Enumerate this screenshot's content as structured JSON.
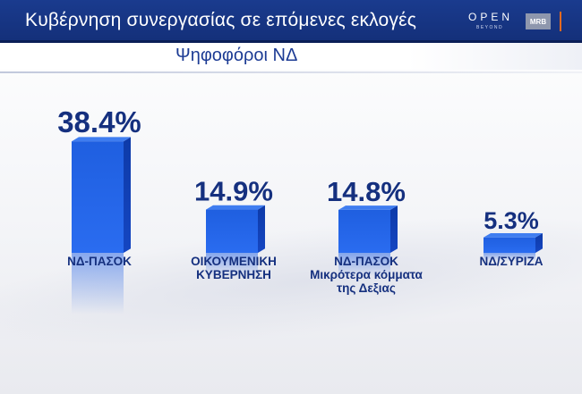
{
  "header": {
    "title": "Κυβέρνηση συνεργασίας σε επόμενες εκλογές",
    "subtitle": "Ψηφοφόροι ΝΔ",
    "logo_open": "OPEN",
    "logo_open_sub": "BEYOND",
    "logo_mrb": "MRB"
  },
  "colors": {
    "bar_front": "#1f5fe0",
    "bar_side": "#0d3aa8",
    "bar_top": "#3f7df0",
    "text": "#15307f",
    "header_bg": "#1a3b8e"
  },
  "chart_data": {
    "type": "bar",
    "title": "Κυβέρνηση συνεργασίας σε επόμενες εκλογές",
    "subtitle": "Ψηφοφόροι ΝΔ",
    "categories": [
      [
        "ΝΔ-ΠΑΣΟΚ"
      ],
      [
        "ΟΙΚΟΥΜΕΝΙΚΗ",
        "ΚΥΒΕΡΝΗΣΗ"
      ],
      [
        "ΝΔ-ΠΑΣΟΚ",
        "Μικρότερα κόμματα",
        "της Δεξιας"
      ],
      [
        "ΝΔ/ΣΥΡΙΖΑ"
      ]
    ],
    "values": [
      38.4,
      14.9,
      14.8,
      5.3
    ],
    "value_labels": [
      "38.4%",
      "14.9%",
      "14.8%",
      "5.3%"
    ],
    "unit": "%",
    "ylim": [
      0,
      40
    ],
    "grid": false,
    "legend": "none"
  }
}
